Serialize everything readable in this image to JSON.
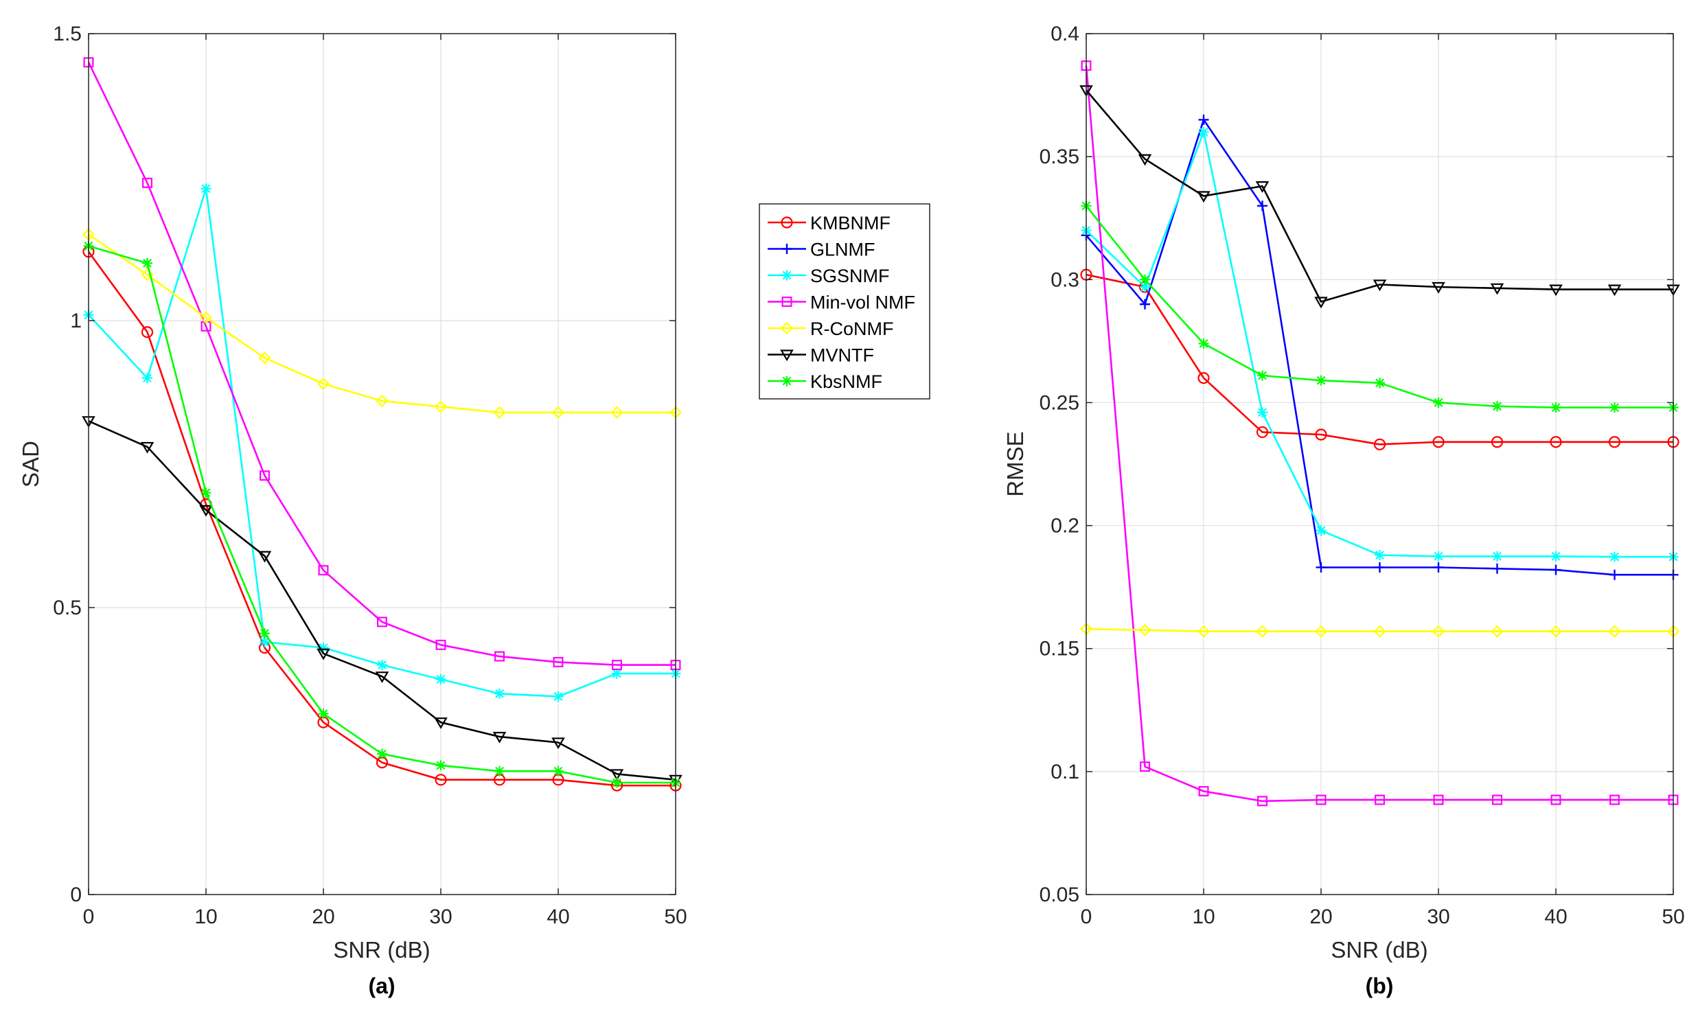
{
  "chart_data": [
    {
      "type": "line",
      "panel_label": "(a)",
      "xlabel": "SNR (dB)",
      "ylabel": "SAD",
      "xlim": [
        0,
        50
      ],
      "ylim": [
        0,
        1.5
      ],
      "xticks": [
        0,
        10,
        20,
        30,
        40,
        50
      ],
      "yticks": [
        0,
        0.5,
        1,
        1.5
      ],
      "xtick_labels": [
        "0",
        "10",
        "20",
        "30",
        "40",
        "50"
      ],
      "ytick_labels": [
        "0",
        "0.5",
        "1",
        "1.5"
      ],
      "grid": true,
      "x": [
        0,
        5,
        10,
        15,
        20,
        25,
        30,
        35,
        40,
        45,
        50
      ],
      "series": [
        {
          "name": "KMBNMF",
          "color": "#ff0000",
          "marker": "circle",
          "values": [
            1.12,
            0.98,
            0.68,
            0.43,
            0.3,
            0.23,
            0.2,
            0.2,
            0.2,
            0.19,
            0.19
          ]
        },
        {
          "name": "SGSNMF",
          "color": "#00ffff",
          "marker": "star",
          "values": [
            1.01,
            0.9,
            1.23,
            0.44,
            0.43,
            0.4,
            0.375,
            0.35,
            0.345,
            0.385,
            0.385
          ]
        },
        {
          "name": "Min-vol NMF",
          "color": "#ff00ff",
          "marker": "square",
          "values": [
            1.45,
            1.24,
            0.99,
            0.73,
            0.565,
            0.475,
            0.435,
            0.415,
            0.405,
            0.4,
            0.4
          ]
        },
        {
          "name": "R-CoNMF",
          "color": "#ffff00",
          "marker": "diamond",
          "values": [
            1.15,
            1.08,
            1.005,
            0.935,
            0.89,
            0.86,
            0.85,
            0.84,
            0.84,
            0.84,
            0.84
          ]
        },
        {
          "name": "MVNTF",
          "color": "#000000",
          "marker": "triangle-down",
          "values": [
            0.825,
            0.78,
            0.67,
            0.59,
            0.42,
            0.38,
            0.3,
            0.275,
            0.265,
            0.21,
            0.2
          ]
        },
        {
          "name": "KbsNMF",
          "color": "#00ff00",
          "marker": "star",
          "values": [
            1.13,
            1.1,
            0.7,
            0.455,
            0.315,
            0.245,
            0.225,
            0.215,
            0.215,
            0.195,
            0.195
          ]
        }
      ]
    },
    {
      "type": "line",
      "panel_label": "(b)",
      "xlabel": "SNR (dB)",
      "ylabel": "RMSE",
      "xlim": [
        0,
        50
      ],
      "ylim": [
        0.05,
        0.4
      ],
      "xticks": [
        0,
        10,
        20,
        30,
        40,
        50
      ],
      "yticks": [
        0.05,
        0.1,
        0.15,
        0.2,
        0.25,
        0.3,
        0.35,
        0.4
      ],
      "xtick_labels": [
        "0",
        "10",
        "20",
        "30",
        "40",
        "50"
      ],
      "ytick_labels": [
        "0.05",
        "0.1",
        "0.15",
        "0.2",
        "0.25",
        "0.3",
        "0.35",
        "0.4"
      ],
      "grid": true,
      "x": [
        0,
        5,
        10,
        15,
        20,
        25,
        30,
        35,
        40,
        45,
        50
      ],
      "series": [
        {
          "name": "KMBNMF",
          "color": "#ff0000",
          "marker": "circle",
          "values": [
            0.302,
            0.297,
            0.26,
            0.238,
            0.237,
            0.233,
            0.234,
            0.234,
            0.234,
            0.234,
            0.234
          ]
        },
        {
          "name": "GLNMF",
          "color": "#0000ff",
          "marker": "plus",
          "values": [
            0.318,
            0.29,
            0.365,
            0.33,
            0.183,
            0.183,
            0.183,
            0.1825,
            0.182,
            0.18,
            0.18
          ]
        },
        {
          "name": "SGSNMF",
          "color": "#00ffff",
          "marker": "star",
          "values": [
            0.32,
            0.297,
            0.36,
            0.246,
            0.198,
            0.188,
            0.1875,
            0.1875,
            0.1875,
            0.1873,
            0.1873
          ]
        },
        {
          "name": "Min-vol NMF",
          "color": "#ff00ff",
          "marker": "square",
          "values": [
            0.387,
            0.102,
            0.092,
            0.088,
            0.0885,
            0.0885,
            0.0885,
            0.0885,
            0.0885,
            0.0885,
            0.0885
          ]
        },
        {
          "name": "R-CoNMF",
          "color": "#ffff00",
          "marker": "diamond",
          "values": [
            0.158,
            0.1575,
            0.157,
            0.157,
            0.157,
            0.157,
            0.157,
            0.157,
            0.157,
            0.157,
            0.157
          ]
        },
        {
          "name": "MVNTF",
          "color": "#000000",
          "marker": "triangle-down",
          "values": [
            0.377,
            0.349,
            0.334,
            0.338,
            0.291,
            0.298,
            0.297,
            0.2965,
            0.296,
            0.296,
            0.296
          ]
        },
        {
          "name": "KbsNMF",
          "color": "#00ff00",
          "marker": "star",
          "values": [
            0.33,
            0.3,
            0.274,
            0.261,
            0.259,
            0.258,
            0.25,
            0.2485,
            0.248,
            0.248,
            0.248
          ]
        }
      ]
    }
  ],
  "legend": {
    "placement": "between-panels",
    "entries": [
      {
        "name": "KMBNMF",
        "color": "#ff0000",
        "marker": "circle"
      },
      {
        "name": "GLNMF",
        "color": "#0000ff",
        "marker": "plus"
      },
      {
        "name": "SGSNMF",
        "color": "#00ffff",
        "marker": "star"
      },
      {
        "name": "Min-vol NMF",
        "color": "#ff00ff",
        "marker": "square"
      },
      {
        "name": "R-CoNMF",
        "color": "#ffff00",
        "marker": "diamond"
      },
      {
        "name": "MVNTF",
        "color": "#000000",
        "marker": "triangle-down"
      },
      {
        "name": "KbsNMF",
        "color": "#00ff00",
        "marker": "star"
      }
    ]
  }
}
